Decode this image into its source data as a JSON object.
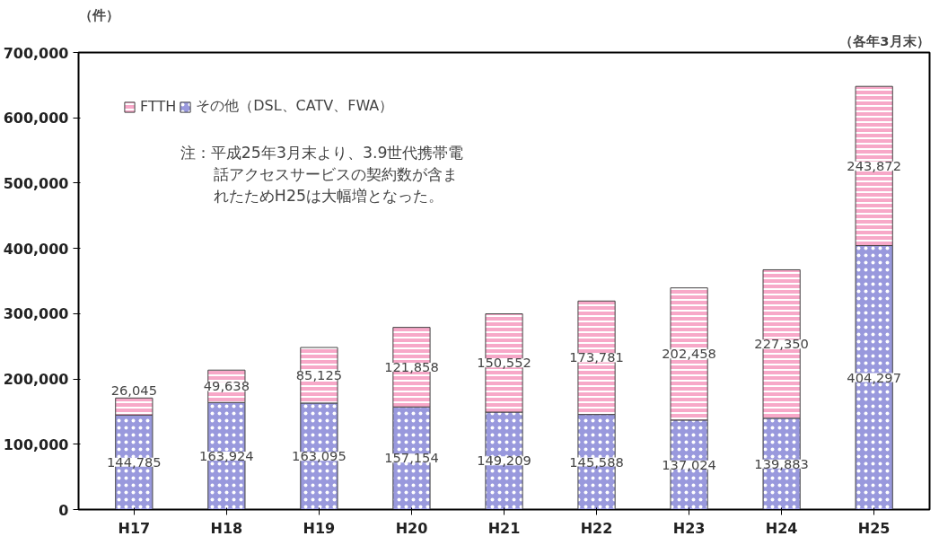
{
  "chart_data": {
    "type": "bar",
    "stacked": true,
    "ylabel": "（件）",
    "categories": [
      "H17",
      "H18",
      "H19",
      "H20",
      "H21",
      "H22",
      "H23",
      "H24",
      "H25"
    ],
    "series": [
      {
        "name": "その他（DSL、CATV、FWA）",
        "color": "#9999dd",
        "values": [
          144785,
          163924,
          163095,
          157154,
          149209,
          145588,
          137024,
          139883,
          404297
        ],
        "value_labels": [
          "144,785",
          "163,924",
          "163,095",
          "157,154",
          "149,209",
          "145,588",
          "137,024",
          "139,883",
          "404,297"
        ]
      },
      {
        "name": "FTTH",
        "color": "#f7a8c8",
        "values": [
          26045,
          49638,
          85125,
          121858,
          150552,
          173781,
          202458,
          227350,
          243872
        ],
        "value_labels": [
          "26,045",
          "49,638",
          "85,125",
          "121,858",
          "150,552",
          "173,781",
          "202,458",
          "227,350",
          "243,872"
        ]
      }
    ],
    "ylim": [
      0,
      700000
    ],
    "yticks": [
      {
        "value": 0,
        "label": "0"
      },
      {
        "value": 100000,
        "label": "100,000"
      },
      {
        "value": 200000,
        "label": "200,000"
      },
      {
        "value": 300000,
        "label": "300,000"
      },
      {
        "value": 400000,
        "label": "400,000"
      },
      {
        "value": 500000,
        "label": "500,000"
      },
      {
        "value": 600000,
        "label": "600,000"
      },
      {
        "value": 700000,
        "label": "700,000"
      }
    ],
    "legend": "top left",
    "grid": false,
    "annotations": [
      "（各年3月末）",
      "注：平成25年3月末より、3.9世代携帯電話アクセスサービスの契約数が含まれたためH25は大幅増となった。"
    ]
  }
}
